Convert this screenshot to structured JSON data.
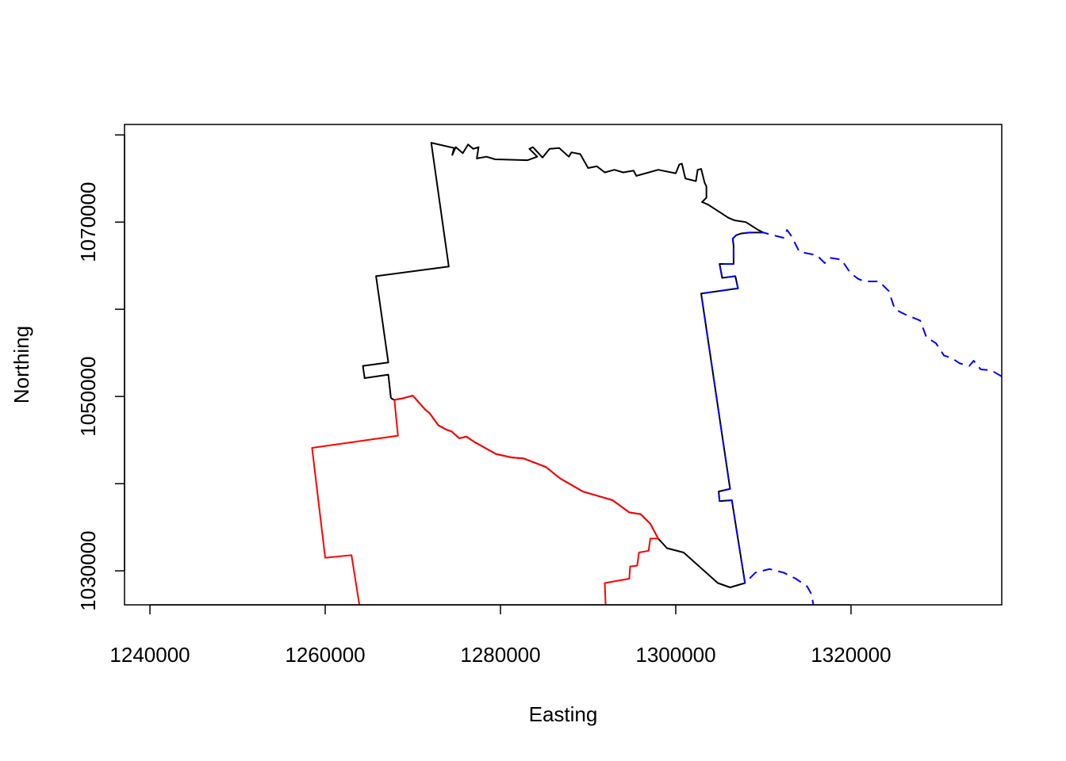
{
  "chart_data": {
    "type": "line",
    "xlabel": "Easting",
    "ylabel": "Northing",
    "xlim": [
      1237100,
      1337200
    ],
    "ylim": [
      1026100,
      1081200
    ],
    "xticks": [
      1240000,
      1260000,
      1280000,
      1300000,
      1320000
    ],
    "yticks": [
      1030000,
      1050000,
      1070000
    ],
    "yminorticks": [
      1040000,
      1060000,
      1080000
    ],
    "series": [
      {
        "color": "#000000",
        "linestyle": "solid",
        "x": [
          1267500,
          1267200,
          1264500,
          1264300,
          1267200,
          1265800,
          1274100,
          1272100,
          1274700,
          1274500,
          1274900,
          1275700,
          1276300,
          1276900,
          1277500,
          1277300,
          1278400,
          1279400,
          1283100,
          1284200,
          1283300,
          1283700,
          1284800,
          1285600,
          1286700,
          1287800,
          1288100,
          1289100,
          1290000,
          1291000,
          1291900,
          1293000,
          1294000,
          1295200,
          1295500,
          1298000,
          1300000,
          1300400,
          1300700,
          1301100,
          1302300,
          1302500,
          1302900,
          1303300,
          1303500,
          1303500,
          1303000,
          1303700,
          1306000,
          1306700,
          1308000,
          1309400,
          1310000,
          1308400,
          1307500,
          1306900,
          1306500,
          1306600,
          1306600,
          1305000,
          1305300,
          1306800,
          1307100,
          1302900,
          1306200,
          1304900,
          1305000,
          1306400,
          1307900,
          1306200,
          1304800,
          1300900,
          1299000,
          1298000,
          1297100,
          1296000,
          1294700,
          1292800,
          1289400,
          1286800,
          1285200,
          1282600,
          1281300,
          1279500,
          1277000,
          1276100,
          1275300,
          1274400,
          1273800,
          1272900,
          1271900,
          1271400,
          1270000,
          1268900,
          1267900,
          1267500
        ],
        "values": [
          1049800,
          1052500,
          1052100,
          1053500,
          1053900,
          1063800,
          1064900,
          1079100,
          1078500,
          1077700,
          1078600,
          1077900,
          1078900,
          1078400,
          1078600,
          1077300,
          1077500,
          1077200,
          1077100,
          1077500,
          1078400,
          1078600,
          1077400,
          1078400,
          1078500,
          1077500,
          1078000,
          1077800,
          1076200,
          1076400,
          1075700,
          1076000,
          1075700,
          1075900,
          1075300,
          1076000,
          1075600,
          1076600,
          1076700,
          1075000,
          1074700,
          1076000,
          1076100,
          1074500,
          1074100,
          1072800,
          1072300,
          1072000,
          1070500,
          1070200,
          1070000,
          1069100,
          1068800,
          1068800,
          1068700,
          1068500,
          1068100,
          1067300,
          1065200,
          1065200,
          1063600,
          1063800,
          1062400,
          1061800,
          1039400,
          1039100,
          1038000,
          1038100,
          1028600,
          1028100,
          1028600,
          1032100,
          1032600,
          1033700,
          1035400,
          1036500,
          1036700,
          1038100,
          1039100,
          1040600,
          1041900,
          1042900,
          1043000,
          1043400,
          1044800,
          1045400,
          1045200,
          1046000,
          1046200,
          1046700,
          1048100,
          1048500,
          1050100,
          1049800,
          1049600,
          1049800
        ]
      },
      {
        "color": "#ff0000",
        "linestyle": "solid",
        "x": [
          1263900,
          1263000,
          1260000,
          1258500,
          1268300,
          1267900,
          1268900,
          1270000,
          1271400,
          1271900,
          1272900,
          1273800,
          1274400,
          1275300,
          1276100,
          1277000,
          1279500,
          1281300,
          1282600,
          1285200,
          1286800,
          1289400,
          1292800,
          1294700,
          1296000,
          1297100,
          1298000,
          1297100,
          1296900,
          1295800,
          1295600,
          1294800,
          1294700,
          1291900,
          1292000
        ],
        "values": [
          1026100,
          1031800,
          1031500,
          1044100,
          1045500,
          1049600,
          1049800,
          1050100,
          1048500,
          1048100,
          1046700,
          1046200,
          1046000,
          1045200,
          1045400,
          1044800,
          1043400,
          1043000,
          1042900,
          1041900,
          1040600,
          1039100,
          1038100,
          1036700,
          1036500,
          1035400,
          1033700,
          1033700,
          1032300,
          1032100,
          1030600,
          1030500,
          1029100,
          1028600,
          1026100
        ]
      },
      {
        "color": "#0000ff",
        "linestyle": "dashed",
        "x": [
          1337200,
          1336000,
          1334800,
          1334000,
          1333500,
          1332400,
          1331500,
          1330600,
          1329700,
          1328600,
          1327900,
          1326200,
          1325000,
          1324300,
          1323200,
          1321500,
          1320800,
          1319900,
          1318900,
          1317600,
          1317000,
          1316100,
          1314100,
          1313200,
          1312700,
          1312300,
          1311100,
          1310000,
          1308400,
          1307500,
          1306900,
          1306500,
          1306600,
          1306600,
          1305000,
          1305300,
          1306800,
          1307100,
          1302900,
          1306200,
          1304900,
          1305000,
          1306400,
          1307900,
          1309100,
          1310700,
          1312300,
          1313700,
          1315000,
          1315500,
          1315700
        ],
        "values": [
          1052300,
          1053000,
          1053100,
          1054100,
          1053500,
          1053800,
          1054400,
          1054700,
          1056100,
          1056800,
          1058700,
          1059400,
          1060000,
          1062100,
          1063200,
          1063200,
          1063500,
          1064200,
          1065700,
          1065900,
          1065300,
          1066200,
          1066600,
          1068400,
          1069100,
          1068200,
          1068500,
          1068800,
          1068800,
          1068700,
          1068500,
          1068100,
          1067300,
          1065200,
          1065200,
          1063600,
          1063800,
          1062400,
          1061800,
          1039400,
          1039100,
          1038000,
          1038100,
          1028600,
          1029800,
          1030200,
          1029800,
          1029100,
          1028200,
          1027300,
          1026100
        ]
      }
    ]
  }
}
